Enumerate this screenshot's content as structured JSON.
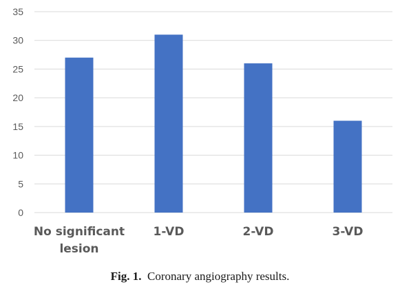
{
  "chart_data": {
    "type": "bar",
    "categories": [
      "No significant lesion",
      "1-VD",
      "2-VD",
      "3-VD"
    ],
    "category_label_lines": [
      [
        "No significant",
        "lesion"
      ],
      [
        "1-VD"
      ],
      [
        "2-VD"
      ],
      [
        "3-VD"
      ]
    ],
    "values": [
      27,
      31,
      26,
      16
    ],
    "ylim": [
      0,
      35
    ],
    "yticks": [
      "0",
      "5",
      "10",
      "15",
      "20",
      "25",
      "30",
      "35"
    ],
    "grid": true,
    "legend": "none",
    "bar_color": "#4472C4",
    "grid_color": "#D9D9D9",
    "title": "",
    "xlabel": "",
    "ylabel": ""
  },
  "caption": {
    "label": "Fig. 1.",
    "text": "Coronary angiography results."
  }
}
